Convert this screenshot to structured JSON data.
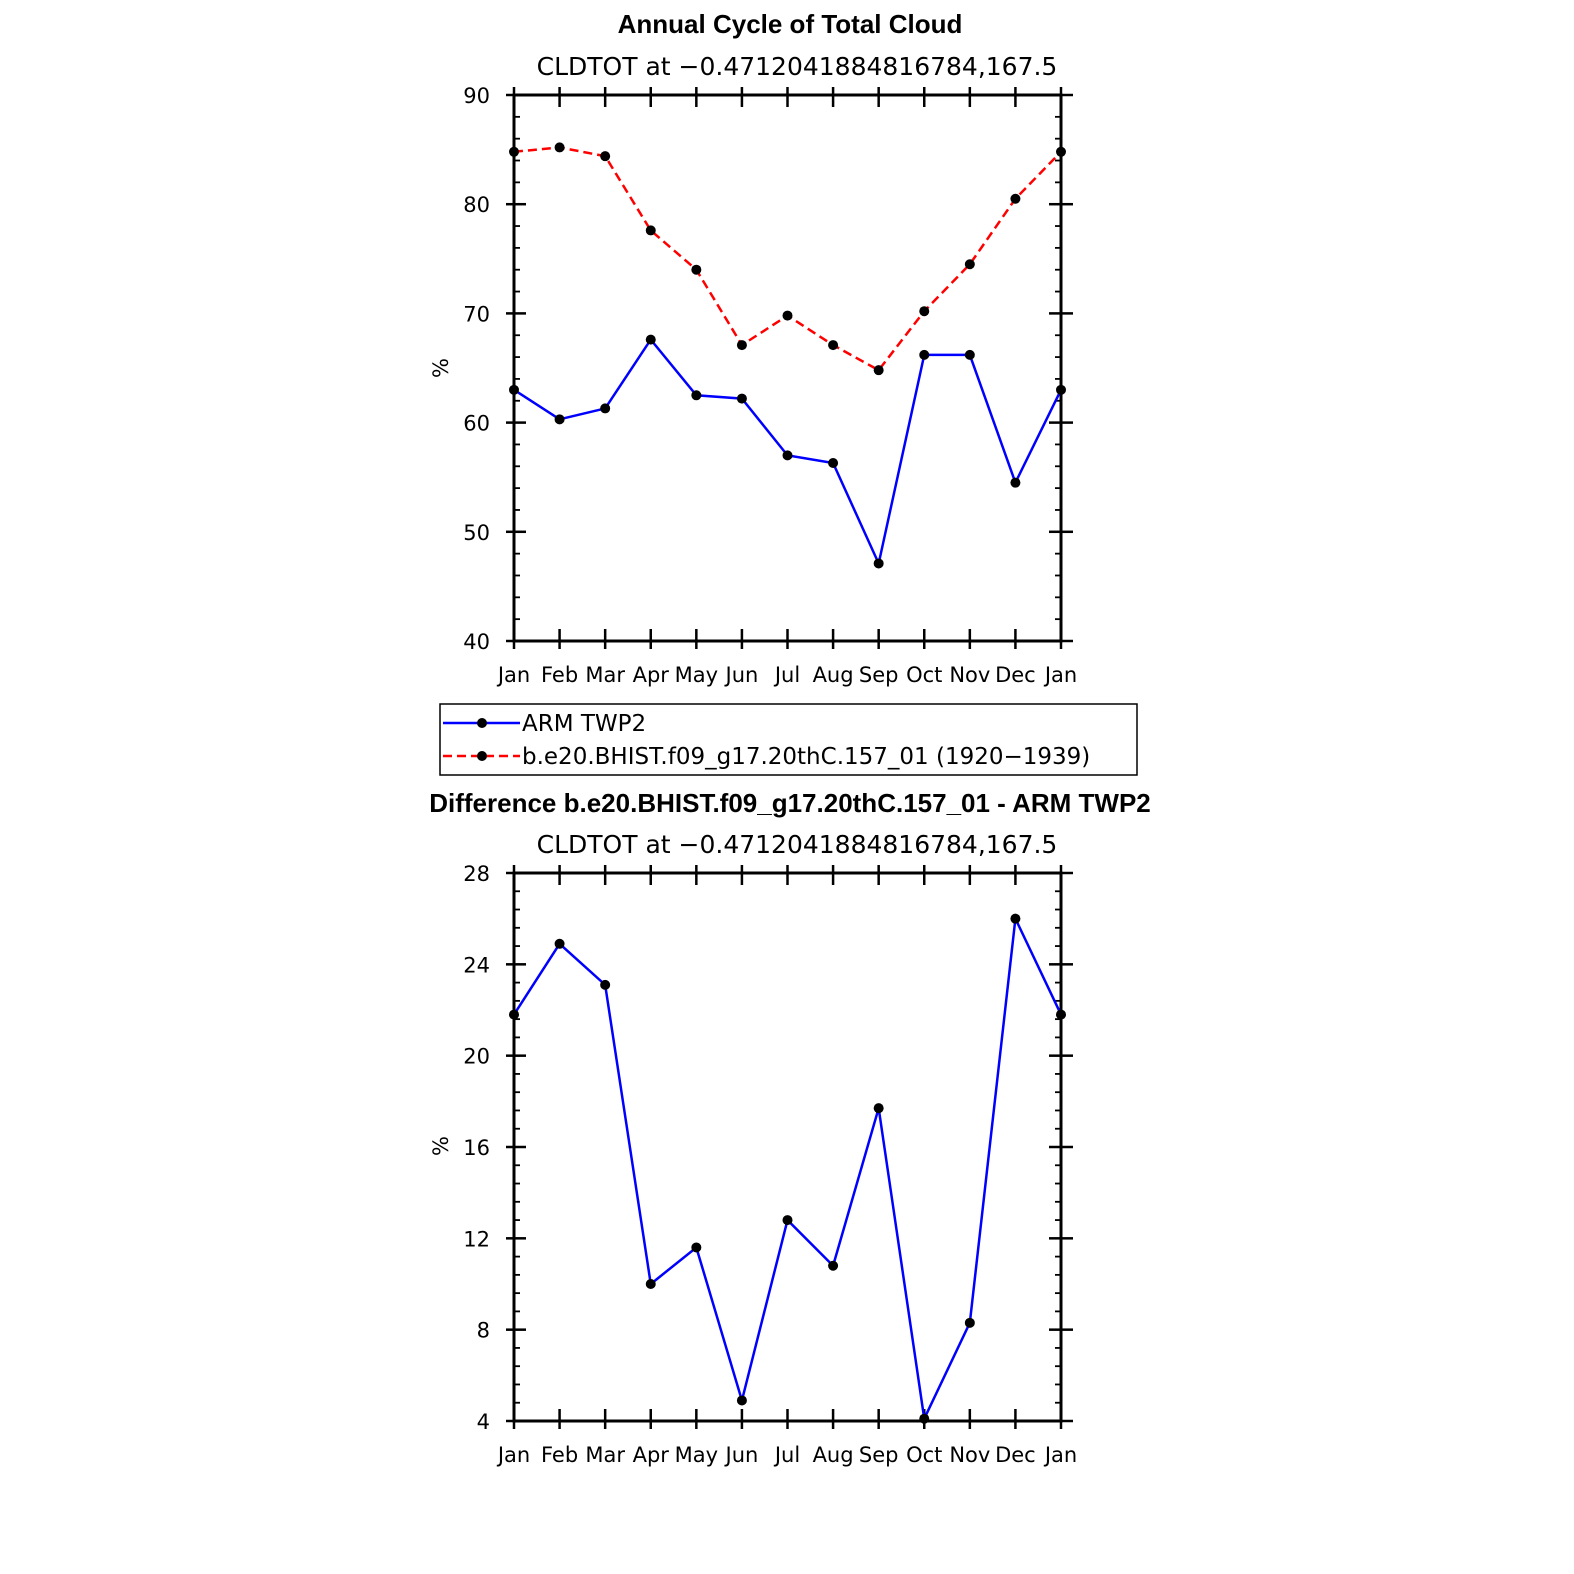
{
  "chart_data": [
    {
      "type": "line",
      "title": "Annual Cycle of Total Cloud",
      "subtitle": "CLDTOT at −0.4712041884816784,167.5",
      "xlabel": "",
      "ylabel": "%",
      "categories": [
        "Jan",
        "Feb",
        "Mar",
        "Apr",
        "May",
        "Jun",
        "Jul",
        "Aug",
        "Sep",
        "Oct",
        "Nov",
        "Dec",
        "Jan"
      ],
      "ylim": [
        40,
        90
      ],
      "yticks": [
        40,
        50,
        60,
        70,
        80,
        90
      ],
      "grid": false,
      "legend_position": "below",
      "series": [
        {
          "name": "ARM TWP2",
          "color": "#0000ff",
          "style": "solid",
          "values": [
            63.0,
            60.3,
            61.3,
            67.6,
            62.5,
            62.2,
            57.0,
            56.3,
            47.1,
            66.2,
            66.2,
            54.5,
            63.0
          ]
        },
        {
          "name": "b.e20.BHIST.f09_g17.20thC.157_01 (1920−1939)",
          "color": "#ff0000",
          "style": "dashed",
          "values": [
            84.8,
            85.2,
            84.4,
            77.6,
            74.0,
            67.1,
            69.8,
            67.1,
            64.8,
            70.2,
            74.5,
            80.5,
            84.8
          ]
        }
      ]
    },
    {
      "type": "line",
      "title": "Difference b.e20.BHIST.f09_g17.20thC.157_01 - ARM TWP2",
      "subtitle": "CLDTOT at −0.4712041884816784,167.5",
      "xlabel": "",
      "ylabel": "%",
      "categories": [
        "Jan",
        "Feb",
        "Mar",
        "Apr",
        "May",
        "Jun",
        "Jul",
        "Aug",
        "Sep",
        "Oct",
        "Nov",
        "Dec",
        "Jan"
      ],
      "ylim": [
        4,
        28
      ],
      "yticks": [
        4,
        8,
        12,
        16,
        20,
        24,
        28
      ],
      "grid": false,
      "series": [
        {
          "color": "#0000ff",
          "style": "solid",
          "values": [
            21.8,
            24.9,
            23.1,
            10.0,
            11.6,
            4.9,
            12.8,
            10.8,
            17.7,
            4.1,
            8.3,
            26.0,
            21.8
          ]
        }
      ]
    }
  ]
}
